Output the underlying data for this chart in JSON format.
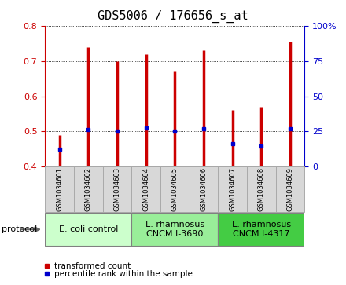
{
  "title": "GDS5006 / 176656_s_at",
  "samples": [
    "GSM1034601",
    "GSM1034602",
    "GSM1034603",
    "GSM1034604",
    "GSM1034605",
    "GSM1034606",
    "GSM1034607",
    "GSM1034608",
    "GSM1034609"
  ],
  "transformed_count": [
    0.49,
    0.74,
    0.7,
    0.72,
    0.67,
    0.73,
    0.56,
    0.57,
    0.755
  ],
  "percentile_rank": [
    0.45,
    0.505,
    0.502,
    0.51,
    0.5,
    0.508,
    0.465,
    0.458,
    0.508
  ],
  "ylim": [
    0.4,
    0.8
  ],
  "yticks_left": [
    0.4,
    0.5,
    0.6,
    0.7,
    0.8
  ],
  "yticks_right": [
    0,
    25,
    50,
    75,
    100
  ],
  "bar_color": "#cc0000",
  "percentile_color": "#0000cc",
  "protocol_groups": [
    {
      "label": "E. coli control",
      "start": 0,
      "end": 3,
      "color": "#ccffcc"
    },
    {
      "label": "L. rhamnosus\nCNCM I-3690",
      "start": 3,
      "end": 6,
      "color": "#99ee99"
    },
    {
      "label": "L. rhamnosus\nCNCM I-4317",
      "start": 6,
      "end": 9,
      "color": "#44cc44"
    }
  ],
  "legend_bar_label": "transformed count",
  "legend_dot_label": "percentile rank within the sample",
  "protocol_label": "protocol",
  "title_fontsize": 11,
  "tick_fontsize": 8,
  "sample_fontsize": 6,
  "proto_fontsize": 8,
  "legend_fontsize": 7.5,
  "sample_box_color": "#d8d8d8",
  "sample_box_edge": "#aaaaaa",
  "left_spine_color": "#cc0000",
  "right_spine_color": "#0000cc"
}
